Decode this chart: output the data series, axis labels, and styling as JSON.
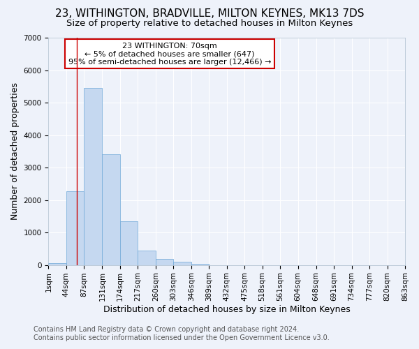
{
  "title": "23, WITHINGTON, BRADVILLE, MILTON KEYNES, MK13 7DS",
  "subtitle": "Size of property relative to detached houses in Milton Keynes",
  "xlabel": "Distribution of detached houses by size in Milton Keynes",
  "ylabel": "Number of detached properties",
  "footer_lines": [
    "Contains HM Land Registry data © Crown copyright and database right 2024.",
    "Contains public sector information licensed under the Open Government Licence v3.0."
  ],
  "bin_edges": [
    1,
    44,
    87,
    131,
    174,
    217,
    260,
    303,
    346,
    389,
    432,
    475,
    518,
    561,
    604,
    648,
    691,
    734,
    777,
    820,
    863
  ],
  "bin_counts": [
    50,
    2270,
    5460,
    3420,
    1340,
    435,
    175,
    90,
    45,
    0,
    0,
    0,
    0,
    0,
    0,
    0,
    0,
    0,
    0,
    0
  ],
  "bar_color": "#c5d8f0",
  "bar_edgecolor": "#6fa8d8",
  "vline_x": 70,
  "vline_color": "#cc0000",
  "annotation_text": "23 WITHINGTON: 70sqm\n← 5% of detached houses are smaller (647)\n95% of semi-detached houses are larger (12,466) →",
  "annotation_box_color": "#ffffff",
  "annotation_box_edgecolor": "#cc0000",
  "ylim": [
    0,
    7000
  ],
  "yticks": [
    0,
    1000,
    2000,
    3000,
    4000,
    5000,
    6000,
    7000
  ],
  "xtick_labels": [
    "1sqm",
    "44sqm",
    "87sqm",
    "131sqm",
    "174sqm",
    "217sqm",
    "260sqm",
    "303sqm",
    "346sqm",
    "389sqm",
    "432sqm",
    "475sqm",
    "518sqm",
    "561sqm",
    "604sqm",
    "648sqm",
    "691sqm",
    "734sqm",
    "777sqm",
    "820sqm",
    "863sqm"
  ],
  "background_color": "#eef2fa",
  "grid_color": "#ffffff",
  "title_fontsize": 11,
  "subtitle_fontsize": 9.5,
  "axis_label_fontsize": 9,
  "tick_fontsize": 7.5,
  "footer_fontsize": 7.0
}
